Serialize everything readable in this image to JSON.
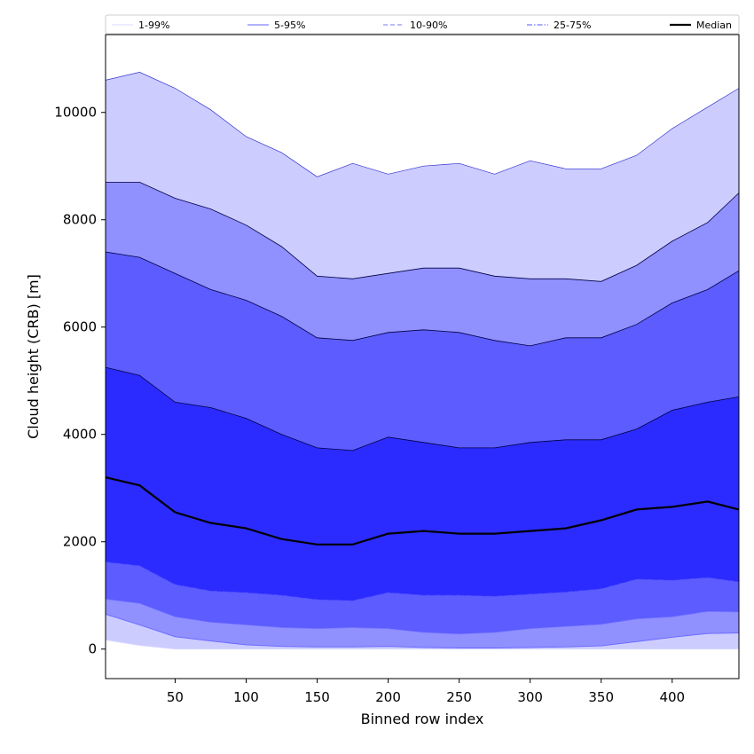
{
  "chart_data": {
    "type": "area",
    "title": "",
    "xlabel": "Binned row index",
    "ylabel": "Cloud height (CRB) [m]",
    "xlim": [
      1,
      447
    ],
    "ylim": [
      -550,
      11450
    ],
    "xticks": [
      50,
      100,
      150,
      200,
      250,
      300,
      350,
      400
    ],
    "yticks": [
      0,
      2000,
      4000,
      6000,
      8000,
      10000
    ],
    "grid": false,
    "legend_position": "top",
    "x": [
      1,
      25,
      50,
      75,
      100,
      125,
      150,
      175,
      200,
      225,
      250,
      275,
      300,
      325,
      350,
      375,
      400,
      425,
      447
    ],
    "bands": [
      {
        "name": "1-99%",
        "color": "#ccccff",
        "line_style": "solid",
        "line_color": "#d8d8ff",
        "lower": [
          170,
          70,
          0,
          0,
          0,
          0,
          0,
          0,
          0,
          0,
          0,
          0,
          0,
          0,
          0,
          0,
          0,
          0,
          0
        ],
        "upper": [
          10600,
          10750,
          10450,
          10050,
          9550,
          9250,
          8800,
          9050,
          8850,
          9000,
          9050,
          8850,
          9100,
          8950,
          8950,
          9200,
          9700,
          10100,
          10450
        ]
      },
      {
        "name": "5-95%",
        "color": "#9090ff",
        "line_style": "solid",
        "line_color": "#6666ff",
        "lower": [
          650,
          450,
          230,
          150,
          80,
          50,
          40,
          40,
          50,
          30,
          20,
          20,
          30,
          40,
          60,
          140,
          220,
          290,
          300
        ]
      },
      {
        "name": "10-90%",
        "color": "#5c5cff",
        "line_style": "dashed",
        "line_color": "#7777ff",
        "lower": [
          930,
          850,
          600,
          500,
          450,
          400,
          380,
          400,
          380,
          310,
          280,
          310,
          380,
          420,
          460,
          560,
          600,
          700,
          690
        ]
      },
      {
        "name": "25-75%",
        "color": "#2b2bff",
        "line_style": "dashdot",
        "line_color": "#5555ff",
        "lower": [
          1620,
          1550,
          1200,
          1080,
          1050,
          1000,
          920,
          900,
          1050,
          1000,
          1000,
          980,
          1020,
          1060,
          1120,
          1300,
          1280,
          1330,
          1250
        ]
      }
    ],
    "upper_lines": [
      {
        "band": "5-95%",
        "values": [
          8700,
          8700,
          8400,
          8200,
          7900,
          7500,
          6950,
          6900,
          7000,
          7100,
          7100,
          6950,
          6900,
          6900,
          6850,
          7150,
          7600,
          7950,
          8500
        ]
      },
      {
        "band": "10-90%",
        "values": [
          7400,
          7300,
          7000,
          6700,
          6500,
          6200,
          5800,
          5750,
          5900,
          5950,
          5900,
          5750,
          5650,
          5800,
          5800,
          6050,
          6450,
          6700,
          7050
        ]
      },
      {
        "band": "25-75%",
        "values": [
          5250,
          5100,
          4600,
          4500,
          4300,
          4000,
          3750,
          3700,
          3950,
          3850,
          3750,
          3750,
          3850,
          3900,
          3900,
          4100,
          4450,
          4600,
          4700
        ]
      }
    ],
    "series": [
      {
        "name": "Median",
        "color": "#000000",
        "values": [
          3200,
          3050,
          2550,
          2350,
          2250,
          2050,
          1950,
          1950,
          2150,
          2200,
          2150,
          2150,
          2200,
          2250,
          2400,
          2600,
          2650,
          2750,
          2600
        ]
      }
    ]
  }
}
